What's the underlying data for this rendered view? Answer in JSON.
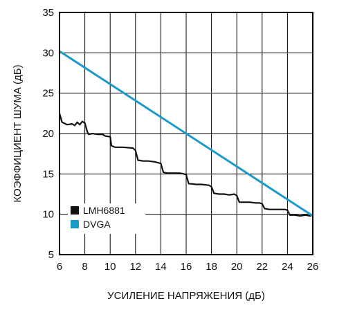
{
  "chart_data": {
    "type": "line",
    "title": "",
    "xlabel": "УСИЛЕНИЕ НАПРЯЖЕНИЯ (дБ)",
    "ylabel": "КОЭФФИЦИЕНТ ШУМА (дБ)",
    "xlim": [
      6,
      26
    ],
    "ylim": [
      5,
      35
    ],
    "xticks": [
      6,
      8,
      10,
      12,
      14,
      16,
      18,
      20,
      22,
      24,
      26
    ],
    "yticks": [
      5,
      10,
      15,
      20,
      25,
      30,
      35
    ],
    "grid": true,
    "legend_position": "bottom-left",
    "series": [
      {
        "name": "LMH6881",
        "color": "#111111",
        "marker": "filled-square",
        "x": [
          6,
          6.2,
          6.6,
          7.0,
          7.2,
          7.4,
          7.6,
          7.8,
          8.0,
          8.2,
          8.3,
          8.6,
          9.0,
          9.4,
          9.6,
          10.0,
          10.1,
          10.4,
          11.0,
          11.8,
          12.0,
          12.2,
          12.6,
          13.0,
          13.5,
          14.0,
          14.2,
          14.5,
          15.0,
          15.5,
          15.8,
          16.0,
          16.2,
          16.8,
          17.2,
          17.8,
          18.0,
          18.2,
          18.6,
          19.0,
          19.4,
          19.8,
          20.0,
          20.2,
          20.6,
          21.0,
          21.5,
          21.8,
          22.0,
          22.2,
          22.6,
          23.0,
          23.4,
          23.8,
          24.0,
          24.2,
          24.6,
          25.0,
          25.4,
          25.8,
          26.0
        ],
        "values": [
          22.5,
          21.4,
          21.1,
          21.2,
          21.0,
          21.4,
          21.1,
          21.5,
          21.3,
          20.2,
          19.9,
          20.0,
          19.9,
          19.9,
          19.7,
          19.6,
          18.5,
          18.3,
          18.3,
          18.2,
          17.9,
          16.7,
          16.6,
          16.6,
          16.5,
          16.3,
          15.2,
          15.1,
          15.1,
          15.1,
          15.0,
          14.9,
          13.8,
          13.7,
          13.7,
          13.6,
          13.4,
          12.6,
          12.5,
          12.5,
          12.4,
          12.5,
          12.3,
          11.5,
          11.5,
          11.5,
          11.4,
          11.4,
          11.3,
          10.7,
          10.6,
          10.6,
          10.6,
          10.6,
          10.5,
          9.9,
          9.9,
          9.8,
          9.9,
          9.8,
          9.9
        ]
      },
      {
        "name": "DVGA",
        "color": "#1b9ac9",
        "marker": "filled-square",
        "x": [
          6,
          26
        ],
        "values": [
          30.2,
          9.8
        ]
      }
    ]
  }
}
